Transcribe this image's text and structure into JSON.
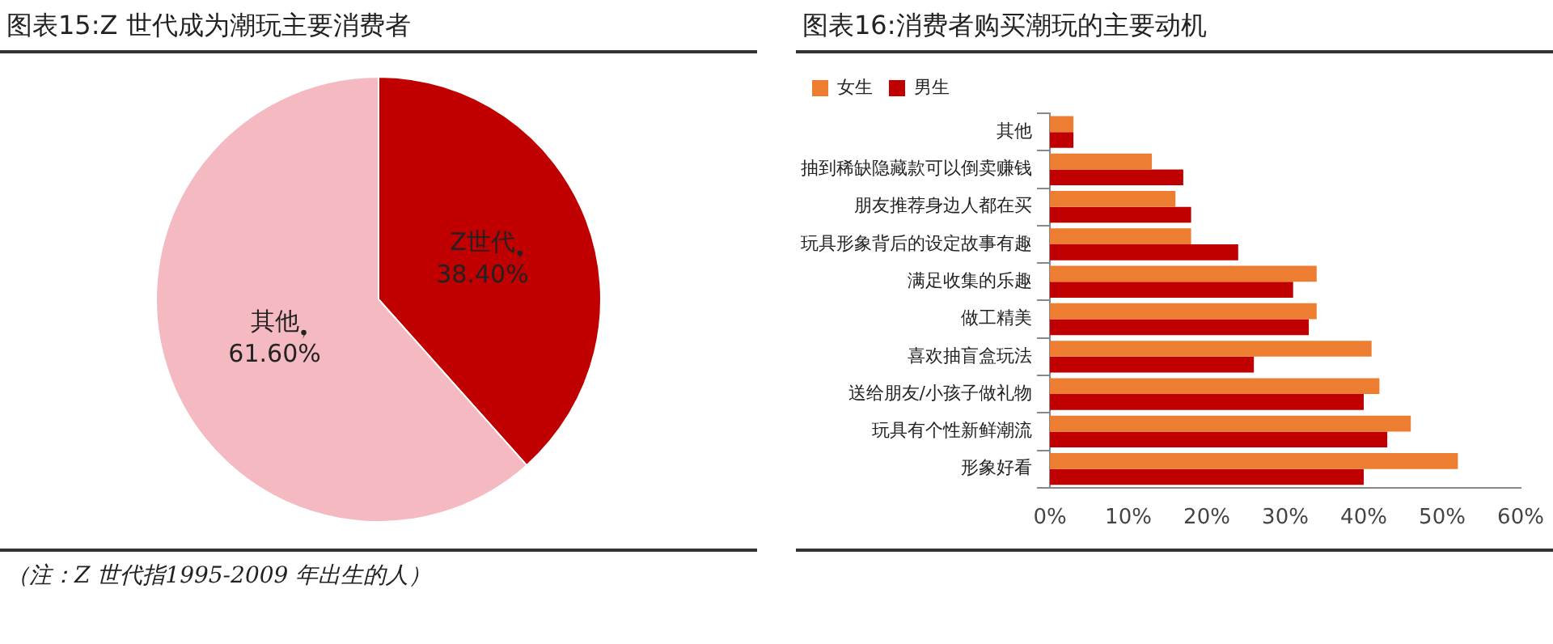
{
  "chart_data": [
    {
      "type": "pie",
      "title": "图表15:Z 世代成为潮玩主要消费者",
      "categories": [
        "Z世代",
        "其他"
      ],
      "values": [
        38.4,
        61.6
      ],
      "colors": [
        "#c00000",
        "#f4b9c1"
      ],
      "value_labels": [
        "38.40%",
        "61.60%"
      ],
      "legend": false,
      "annotations": [
        "（注：Z 世代指1995-2009 年出生的人）"
      ]
    },
    {
      "type": "bar",
      "title": "图表16:消费者购买潮玩的主要动机",
      "orientation": "horizontal",
      "categories": [
        "其他",
        "抽到稀缺隐藏款可以倒卖赚钱",
        "朋友推荐身边人都在买",
        "玩具形象背后的设定故事有趣",
        "满足收集的乐趣",
        "做工精美",
        "喜欢抽盲盒玩法",
        "送给朋友/小孩子做礼物",
        "玩具有个性新鲜潮流",
        "形象好看"
      ],
      "series": [
        {
          "name": "女生",
          "color": "#ed7d31",
          "values": [
            3,
            13,
            16,
            18,
            34,
            34,
            41,
            42,
            46,
            52
          ]
        },
        {
          "name": "男生",
          "color": "#c00000",
          "values": [
            3,
            17,
            18,
            24,
            31,
            33,
            26,
            40,
            43,
            40
          ]
        }
      ],
      "xlim": [
        0,
        60
      ],
      "xticks": [
        {
          "value": 0,
          "label": "0%"
        },
        {
          "value": 10,
          "label": "10%"
        },
        {
          "value": 20,
          "label": "20%"
        },
        {
          "value": 30,
          "label": "30%"
        },
        {
          "value": 40,
          "label": "40%"
        },
        {
          "value": 50,
          "label": "50%"
        },
        {
          "value": 60,
          "label": "60%"
        }
      ],
      "grid": false,
      "legend": "top left"
    }
  ]
}
